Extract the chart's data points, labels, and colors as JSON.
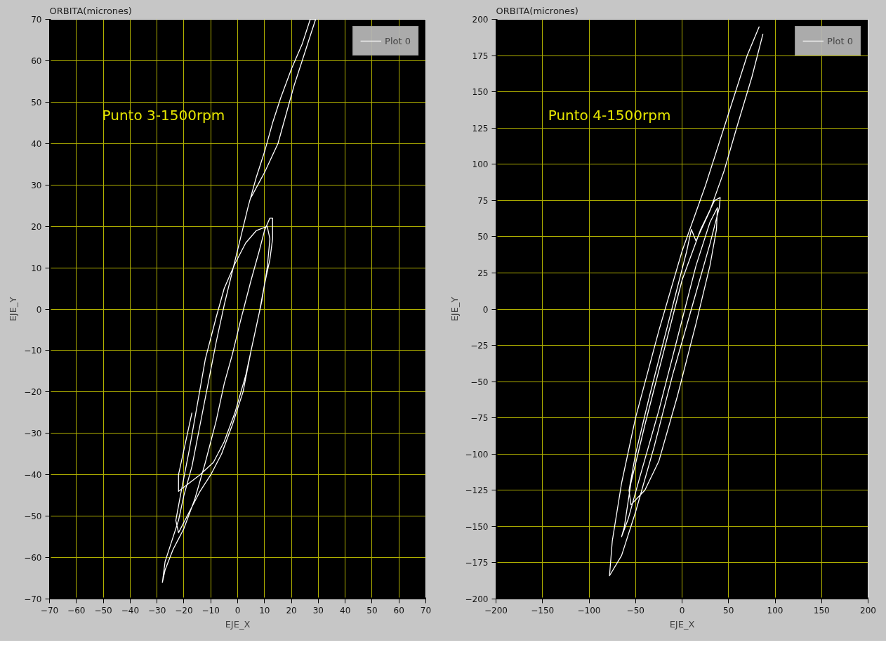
{
  "chart_data": [
    {
      "type": "line",
      "title": "ORBITA(micrones)",
      "xlabel": "EJE_X",
      "ylabel": "EJE_Y",
      "annotations": [
        "Punto 3-1500rpm"
      ],
      "legend": "top right",
      "grid": true,
      "xlim": [
        -70,
        70
      ],
      "ylim": [
        -70,
        70
      ],
      "xticks": [
        -70,
        -60,
        -50,
        -40,
        -30,
        -20,
        -10,
        0,
        10,
        20,
        30,
        40,
        50,
        60,
        70
      ],
      "yticks": [
        -70,
        -60,
        -50,
        -40,
        -30,
        -20,
        -10,
        0,
        10,
        20,
        30,
        40,
        50,
        60,
        70
      ],
      "series": [
        {
          "name": "Plot 0",
          "color": "#ffffff",
          "x": [
            5,
            10,
            15,
            18,
            21,
            24,
            27,
            29,
            27,
            24,
            20,
            16,
            13,
            10,
            7,
            4,
            1,
            -2,
            -5,
            -8,
            -11,
            -14,
            -17,
            -20,
            -22,
            -25,
            -27,
            -28,
            -27,
            -24,
            -20,
            -16,
            -12,
            -8,
            -5,
            -2,
            1,
            5,
            8,
            10,
            12,
            13,
            13,
            12,
            10,
            8,
            5,
            2,
            -2,
            -6,
            -10,
            -14,
            -18,
            -22,
            -23,
            -21,
            -18,
            -15,
            -12,
            -8,
            -5,
            -1,
            3,
            7,
            11,
            12,
            11,
            9,
            6,
            3,
            -1,
            -5,
            -9,
            -14,
            -18,
            -22,
            -22,
            -20,
            -17
          ],
          "values": [
            27,
            33,
            40,
            47,
            54,
            60,
            66,
            70,
            70,
            64,
            58,
            51,
            45,
            38,
            32,
            25,
            17,
            9,
            1,
            -8,
            -18,
            -28,
            -38,
            -45,
            -51,
            -57,
            -61,
            -66,
            -63,
            -58,
            -53,
            -46,
            -37,
            -27,
            -18,
            -11,
            -3,
            7,
            14,
            19,
            22,
            22,
            17,
            12,
            6,
            -1,
            -10,
            -20,
            -28,
            -35,
            -40,
            -44,
            -49,
            -54,
            -51,
            -44,
            -34,
            -23,
            -12,
            -2,
            5,
            11,
            16,
            19,
            20,
            17,
            10,
            2,
            -7,
            -16,
            -25,
            -32,
            -37,
            -40,
            -42,
            -44,
            -40,
            -34,
            -25
          ]
        }
      ]
    },
    {
      "type": "line",
      "title": "ORBITA(micrones)",
      "xlabel": "EJE_X",
      "ylabel": "EJE_Y",
      "annotations": [
        "Punto 4-1500rpm"
      ],
      "legend": "top right",
      "grid": true,
      "xlim": [
        -200,
        200
      ],
      "ylim": [
        -200,
        200
      ],
      "xticks": [
        -200,
        -150,
        -100,
        -50,
        0,
        50,
        100,
        150,
        200
      ],
      "yticks": [
        -200,
        -175,
        -150,
        -125,
        -100,
        -75,
        -50,
        -25,
        0,
        25,
        50,
        75,
        100,
        125,
        150,
        175,
        200
      ],
      "series": [
        {
          "name": "Plot 0",
          "color": "#ffffff",
          "x": [
            83,
            70,
            50,
            25,
            0,
            -25,
            -50,
            -65,
            -75,
            -78,
            -65,
            -50,
            -30,
            -10,
            10,
            30,
            40,
            41,
            35,
            20,
            0,
            -20,
            -40,
            -55,
            -62,
            -65,
            -58,
            -45,
            -25,
            -5,
            15,
            30,
            38,
            37,
            30,
            15,
            -5,
            -25,
            -40,
            -55,
            -57,
            -50,
            -35,
            -15,
            5,
            10,
            15,
            30,
            45,
            60,
            75,
            87
          ],
          "values": [
            195,
            175,
            135,
            85,
            40,
            -15,
            -75,
            -120,
            -160,
            -184,
            -170,
            -140,
            -95,
            -45,
            0,
            45,
            70,
            77,
            75,
            55,
            20,
            -30,
            -80,
            -120,
            -150,
            -157,
            -145,
            -115,
            -70,
            -20,
            30,
            60,
            70,
            55,
            30,
            -10,
            -60,
            -105,
            -125,
            -135,
            -125,
            -100,
            -60,
            -10,
            40,
            55,
            47,
            68,
            95,
            128,
            160,
            190
          ]
        }
      ]
    }
  ]
}
